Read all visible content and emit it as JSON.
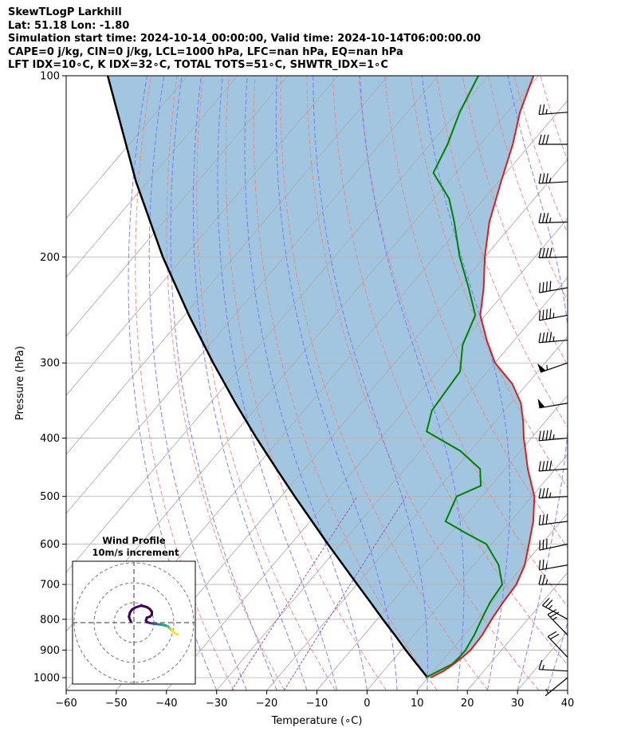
{
  "header": {
    "title": "SkewTLogP Larkhill",
    "location": "Lat: 51.18   Lon: -1.80",
    "times": "Simulation start time: 2024-10-14_00:00:00, Valid time: 2024-10-14T06:00:00.00",
    "indices1": "CAPE=0 j/kg, CIN=0 j/kg, LCL=1000 hPa, LFC=nan hPa, EQ=nan hPa",
    "indices2": "LFT IDX=10∘C, K IDX=32∘C, TOTAL TOTS=51∘C, SHWTR_IDX=1∘C"
  },
  "chart_data": {
    "type": "skew-t log-p",
    "xlabel": "Temperature (∘C)",
    "ylabel": "Pressure (hPa)",
    "xlim": [
      -60,
      40
    ],
    "ylim": [
      1050,
      100
    ],
    "x_ticks": [
      -60,
      -50,
      -40,
      -30,
      -20,
      -10,
      0,
      10,
      20,
      30,
      40
    ],
    "x_tick_labels": [
      "−60",
      "−50",
      "−40",
      "−30",
      "−20",
      "−10",
      "0",
      "10",
      "20",
      "30",
      "40"
    ],
    "y_ticks": [
      1000,
      900,
      800,
      700,
      600,
      500,
      400,
      300,
      200,
      100
    ],
    "y_tick_labels": [
      "1000",
      "900",
      "800",
      "700",
      "600",
      "500",
      "400",
      "300",
      "200",
      "100"
    ],
    "grid": true,
    "colors": {
      "temperature": "#e31a1c",
      "dewpoint": "#008000",
      "parcel": "#000000",
      "fill": "#a2c6e0",
      "isotherm": "#aaaaaa",
      "dry_adiabat": "#f08080",
      "moist_adiabat": "#6f6fff",
      "mixing_ratio": "#9d4db3"
    },
    "temperature_profile": [
      [
        1000,
        10.5
      ],
      [
        975,
        12.0
      ],
      [
        950,
        12.8
      ],
      [
        925,
        13.4
      ],
      [
        900,
        13.8
      ],
      [
        850,
        13.6
      ],
      [
        800,
        12.8
      ],
      [
        750,
        12.2
      ],
      [
        700,
        11.8
      ],
      [
        650,
        10.2
      ],
      [
        600,
        7.5
      ],
      [
        550,
        4.5
      ],
      [
        500,
        0.5
      ],
      [
        450,
        -5.5
      ],
      [
        420,
        -9.0
      ],
      [
        400,
        -11.5
      ],
      [
        375,
        -14.5
      ],
      [
        350,
        -18.0
      ],
      [
        325,
        -23.0
      ],
      [
        300,
        -30.0
      ],
      [
        275,
        -35.5
      ],
      [
        250,
        -41.0
      ],
      [
        225,
        -45.0
      ],
      [
        200,
        -50.0
      ],
      [
        175,
        -55.0
      ],
      [
        150,
        -59.5
      ],
      [
        130,
        -63.5
      ],
      [
        115,
        -67.5
      ],
      [
        100,
        -71.0
      ]
    ],
    "dewpoint_profile": [
      [
        1000,
        9.5
      ],
      [
        975,
        11.0
      ],
      [
        950,
        12.5
      ],
      [
        925,
        12.8
      ],
      [
        900,
        12.8
      ],
      [
        850,
        12.0
      ],
      [
        800,
        10.8
      ],
      [
        750,
        9.6
      ],
      [
        700,
        9.0
      ],
      [
        650,
        5.0
      ],
      [
        600,
        -1.0
      ],
      [
        575,
        -7.0
      ],
      [
        550,
        -13.0
      ],
      [
        500,
        -15.0
      ],
      [
        480,
        -12.0
      ],
      [
        450,
        -15.0
      ],
      [
        420,
        -22.0
      ],
      [
        390,
        -32.0
      ],
      [
        360,
        -34.5
      ],
      [
        335,
        -35.0
      ],
      [
        310,
        -35.5
      ],
      [
        280,
        -39.5
      ],
      [
        250,
        -42.0
      ],
      [
        225,
        -48.0
      ],
      [
        200,
        -55.0
      ],
      [
        175,
        -62.0
      ],
      [
        160,
        -67.0
      ],
      [
        145,
        -74.5
      ],
      [
        130,
        -76.5
      ],
      [
        115,
        -79.5
      ],
      [
        100,
        -82.0
      ]
    ],
    "parcel_profile": [
      [
        1000,
        9.9
      ],
      [
        950,
        5.5
      ],
      [
        900,
        0.9
      ],
      [
        850,
        -3.8
      ],
      [
        800,
        -8.9
      ],
      [
        750,
        -14.2
      ],
      [
        700,
        -19.9
      ],
      [
        650,
        -26.0
      ],
      [
        600,
        -32.6
      ],
      [
        550,
        -39.6
      ],
      [
        500,
        -47.3
      ],
      [
        450,
        -55.6
      ],
      [
        400,
        -64.8
      ],
      [
        350,
        -74.9
      ],
      [
        300,
        -86.2
      ],
      [
        250,
        -99.1
      ],
      [
        200,
        -114.2
      ],
      [
        150,
        -132.3
      ],
      [
        100,
        -155.9
      ]
    ],
    "wind_barbs": [
      {
        "p": 1000,
        "u": 4.3,
        "v": 3.5
      },
      {
        "p": 975,
        "u": 12.6,
        "v": -0.7
      },
      {
        "p": 925,
        "u": 13.6,
        "v": -14.3
      },
      {
        "p": 850,
        "u": 16.1,
        "v": -16.7
      },
      {
        "p": 800,
        "u": 20.8,
        "v": -11.5
      },
      {
        "p": 700,
        "u": 24.0,
        "v": 0.0
      },
      {
        "p": 650,
        "u": 24.0,
        "v": 4.2
      },
      {
        "p": 600,
        "u": 28.0,
        "v": 6.0
      },
      {
        "p": 550,
        "u": 32.0,
        "v": 4.0
      },
      {
        "p": 500,
        "u": 36.0,
        "v": 2.0
      },
      {
        "p": 450,
        "u": 40.0,
        "v": 3.0
      },
      {
        "p": 400,
        "u": 45.0,
        "v": 4.0
      },
      {
        "p": 350,
        "u": 48.0,
        "v": 8.0
      },
      {
        "p": 300,
        "u": 52.0,
        "v": 18.0
      },
      {
        "p": 275,
        "u": 47.0,
        "v": 4.0
      },
      {
        "p": 250,
        "u": 44.0,
        "v": 8.0
      },
      {
        "p": 225,
        "u": 40.0,
        "v": 7.0
      },
      {
        "p": 200,
        "u": 38.0,
        "v": 1.0
      },
      {
        "p": 175,
        "u": 35.0,
        "v": 1.0
      },
      {
        "p": 150,
        "u": 34.0,
        "v": 2.0
      },
      {
        "p": 130,
        "u": 30.0,
        "v": 0.0
      },
      {
        "p": 115,
        "u": 26.0,
        "v": 2.0
      }
    ],
    "hodograph": {
      "title": "Wind Profile",
      "subtitle": "10m/s increment",
      "ring_spacing": 10,
      "rings": 3,
      "points": [
        [
          -1.5,
          0.5
        ],
        [
          -2.0,
          1.5
        ],
        [
          -2.5,
          3.0
        ],
        [
          -2.0,
          5.0
        ],
        [
          -1.0,
          6.5
        ],
        [
          0.5,
          7.5
        ],
        [
          2.0,
          8.0
        ],
        [
          3.5,
          8.5
        ],
        [
          5.0,
          8.2
        ],
        [
          6.5,
          7.8
        ],
        [
          8.0,
          6.8
        ],
        [
          9.0,
          5.5
        ],
        [
          9.0,
          4.0
        ],
        [
          8.0,
          3.0
        ],
        [
          6.5,
          2.5
        ],
        [
          6.0,
          1.0
        ],
        [
          6.5,
          0.3
        ],
        [
          8.0,
          -0.2
        ],
        [
          10.0,
          -0.5
        ],
        [
          12.0,
          -0.8
        ],
        [
          14.0,
          -1.0
        ],
        [
          16.0,
          -1.5
        ],
        [
          17.0,
          -1.8
        ],
        [
          18.0,
          -3.0
        ],
        [
          19.0,
          -4.0
        ],
        [
          20.0,
          -5.0
        ],
        [
          22.0,
          -6.0
        ]
      ]
    }
  }
}
